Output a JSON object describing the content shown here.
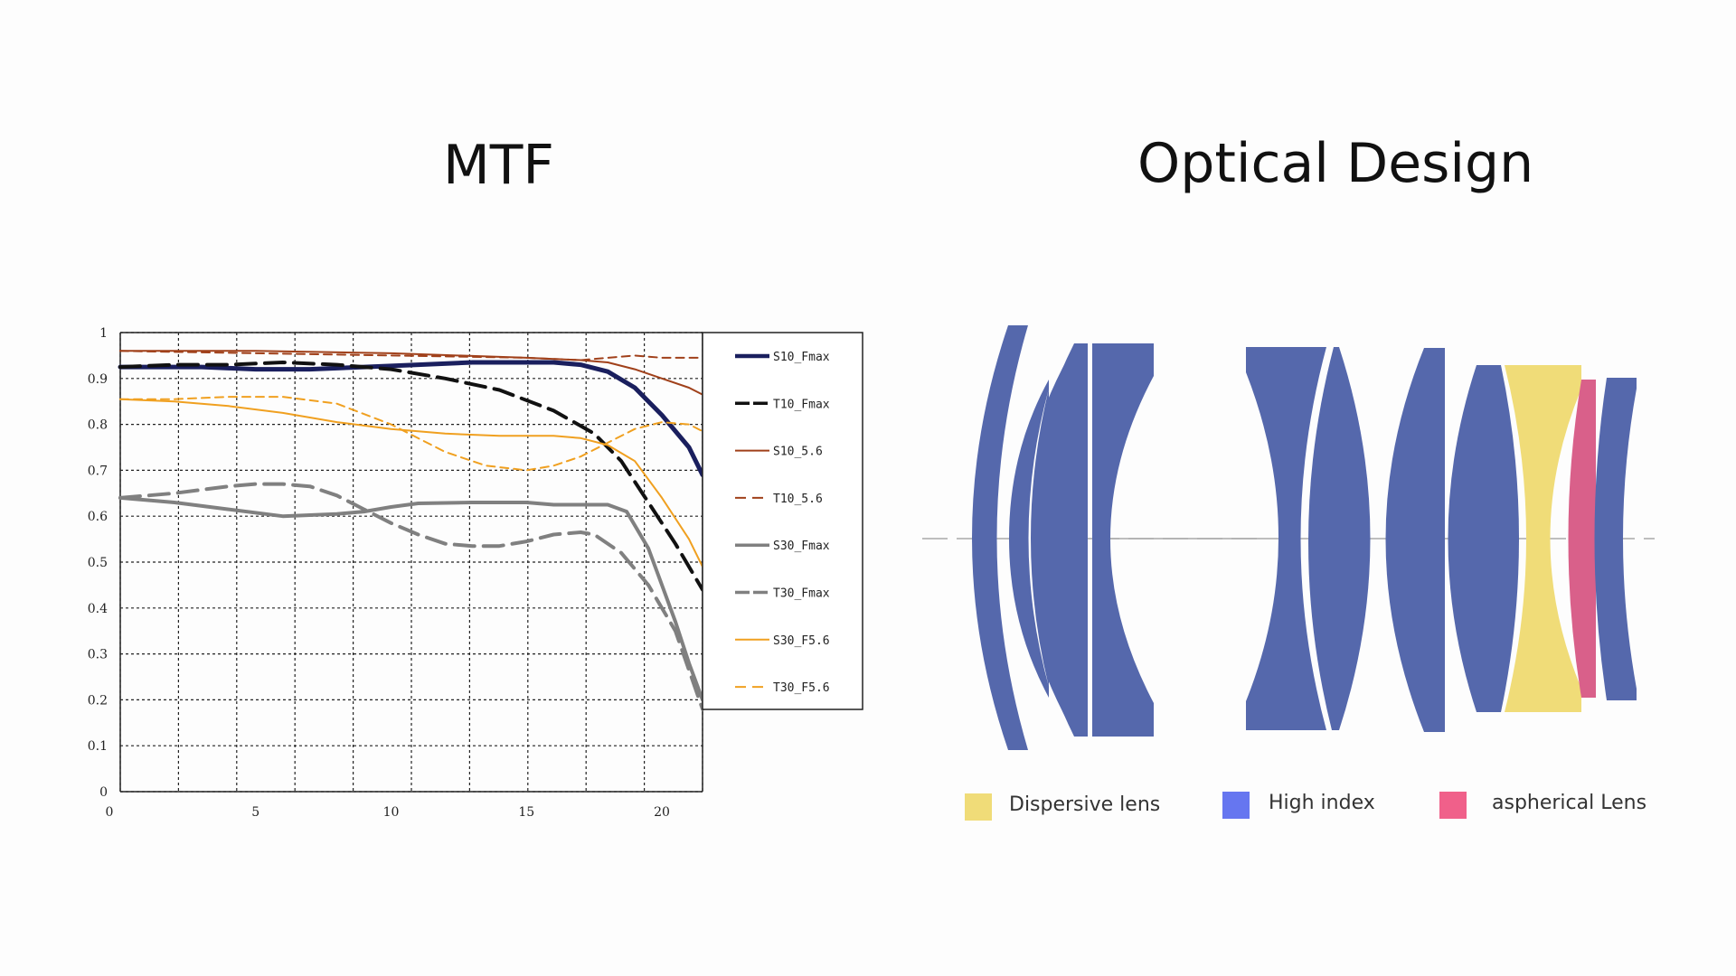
{
  "titles": {
    "mtf": "MTF",
    "optical": "Optical Design"
  },
  "chart_data": {
    "type": "line",
    "title": "MTF",
    "xlabel": "",
    "ylabel": "",
    "xlim": [
      0,
      21.5
    ],
    "ylim": [
      0,
      1
    ],
    "x_ticks": [
      0,
      5,
      10,
      15,
      20
    ],
    "y_ticks": [
      0,
      0.1,
      0.2,
      0.3,
      0.4,
      0.5,
      0.6,
      0.7,
      0.8,
      0.9,
      1
    ],
    "y_tick_labels": [
      "0",
      "0.1",
      "0.2",
      "0.3",
      "0.4",
      "0.5",
      "0.6",
      "0.7",
      "0.8",
      "0.9",
      "1"
    ],
    "grid": true,
    "legend_position": "right",
    "series": [
      {
        "name": "S10_Fmax",
        "color": "#1a1f5e",
        "dash": "solid",
        "width": 5,
        "points": [
          [
            0,
            0.925
          ],
          [
            3,
            0.925
          ],
          [
            5,
            0.92
          ],
          [
            7,
            0.92
          ],
          [
            9,
            0.925
          ],
          [
            11,
            0.93
          ],
          [
            13,
            0.935
          ],
          [
            15,
            0.935
          ],
          [
            16,
            0.935
          ],
          [
            17,
            0.93
          ],
          [
            18,
            0.915
          ],
          [
            19,
            0.88
          ],
          [
            20,
            0.82
          ],
          [
            21,
            0.75
          ],
          [
            21.5,
            0.69
          ]
        ]
      },
      {
        "name": "T10_Fmax",
        "color": "#111111",
        "dash": "long",
        "width": 4,
        "points": [
          [
            0,
            0.925
          ],
          [
            2,
            0.93
          ],
          [
            4,
            0.93
          ],
          [
            6,
            0.935
          ],
          [
            8,
            0.93
          ],
          [
            10,
            0.92
          ],
          [
            12,
            0.9
          ],
          [
            14,
            0.875
          ],
          [
            16,
            0.83
          ],
          [
            17.5,
            0.78
          ],
          [
            18.5,
            0.72
          ],
          [
            19.5,
            0.63
          ],
          [
            20.5,
            0.54
          ],
          [
            21.5,
            0.44
          ]
        ]
      },
      {
        "name": "S10_5.6",
        "color": "#a0401a",
        "dash": "solid",
        "width": 2,
        "points": [
          [
            0,
            0.96
          ],
          [
            5,
            0.96
          ],
          [
            10,
            0.955
          ],
          [
            15,
            0.945
          ],
          [
            17,
            0.94
          ],
          [
            18,
            0.935
          ],
          [
            19,
            0.92
          ],
          [
            20,
            0.9
          ],
          [
            21,
            0.88
          ],
          [
            21.5,
            0.865
          ]
        ]
      },
      {
        "name": "T10_5.6",
        "color": "#a0401a",
        "dash": "short",
        "width": 2,
        "points": [
          [
            0,
            0.96
          ],
          [
            5,
            0.955
          ],
          [
            10,
            0.95
          ],
          [
            15,
            0.945
          ],
          [
            17,
            0.94
          ],
          [
            18,
            0.945
          ],
          [
            19,
            0.95
          ],
          [
            20,
            0.945
          ],
          [
            21,
            0.945
          ],
          [
            21.5,
            0.945
          ]
        ]
      },
      {
        "name": "S30_Fmax",
        "color": "#808080",
        "dash": "solid",
        "width": 4,
        "points": [
          [
            0,
            0.64
          ],
          [
            2,
            0.63
          ],
          [
            4,
            0.615
          ],
          [
            6,
            0.6
          ],
          [
            8,
            0.605
          ],
          [
            9,
            0.61
          ],
          [
            10,
            0.62
          ],
          [
            11,
            0.628
          ],
          [
            13,
            0.63
          ],
          [
            15,
            0.63
          ],
          [
            16,
            0.625
          ],
          [
            17,
            0.625
          ],
          [
            18,
            0.625
          ],
          [
            18.7,
            0.61
          ],
          [
            19.5,
            0.53
          ],
          [
            20,
            0.45
          ],
          [
            20.5,
            0.37
          ],
          [
            21,
            0.28
          ],
          [
            21.5,
            0.2
          ]
        ]
      },
      {
        "name": "T30_Fmax",
        "color": "#808080",
        "dash": "long",
        "width": 4,
        "points": [
          [
            0,
            0.64
          ],
          [
            2,
            0.65
          ],
          [
            4,
            0.665
          ],
          [
            5,
            0.67
          ],
          [
            6,
            0.67
          ],
          [
            7,
            0.665
          ],
          [
            8,
            0.645
          ],
          [
            9,
            0.615
          ],
          [
            10,
            0.585
          ],
          [
            11,
            0.56
          ],
          [
            12,
            0.54
          ],
          [
            13,
            0.535
          ],
          [
            14,
            0.535
          ],
          [
            15,
            0.545
          ],
          [
            16,
            0.56
          ],
          [
            17,
            0.565
          ],
          [
            17.5,
            0.56
          ],
          [
            18.5,
            0.52
          ],
          [
            19.5,
            0.45
          ],
          [
            20.5,
            0.35
          ],
          [
            21.5,
            0.18
          ]
        ]
      },
      {
        "name": "S30_F5.6",
        "color": "#f0a020",
        "dash": "solid",
        "width": 2,
        "points": [
          [
            0,
            0.855
          ],
          [
            2,
            0.85
          ],
          [
            4,
            0.84
          ],
          [
            6,
            0.825
          ],
          [
            8,
            0.805
          ],
          [
            10,
            0.79
          ],
          [
            12,
            0.78
          ],
          [
            14,
            0.775
          ],
          [
            16,
            0.775
          ],
          [
            17,
            0.77
          ],
          [
            18,
            0.755
          ],
          [
            19,
            0.72
          ],
          [
            20,
            0.64
          ],
          [
            21,
            0.55
          ],
          [
            21.5,
            0.49
          ]
        ]
      },
      {
        "name": "T30_F5.6",
        "color": "#f0a020",
        "dash": "short",
        "width": 2,
        "points": [
          [
            0,
            0.855
          ],
          [
            2,
            0.855
          ],
          [
            4,
            0.86
          ],
          [
            6,
            0.86
          ],
          [
            8,
            0.845
          ],
          [
            10,
            0.8
          ],
          [
            12,
            0.74
          ],
          [
            13.5,
            0.71
          ],
          [
            15,
            0.7
          ],
          [
            16,
            0.71
          ],
          [
            17,
            0.73
          ],
          [
            18,
            0.76
          ],
          [
            19,
            0.79
          ],
          [
            20,
            0.805
          ],
          [
            21,
            0.8
          ],
          [
            21.5,
            0.785
          ]
        ]
      }
    ]
  },
  "optical_legend": [
    {
      "label": "Dispersive lens",
      "color": "#f0dc78"
    },
    {
      "label": "High index",
      "color": "#6676f0"
    },
    {
      "label": "aspherical Lens",
      "color": "#f0608a"
    }
  ],
  "lens_colors": {
    "high_index": "#5568ac",
    "dispersive": "#f0dc78",
    "aspherical": "#d9608a",
    "axis": "#aaaaaa"
  }
}
